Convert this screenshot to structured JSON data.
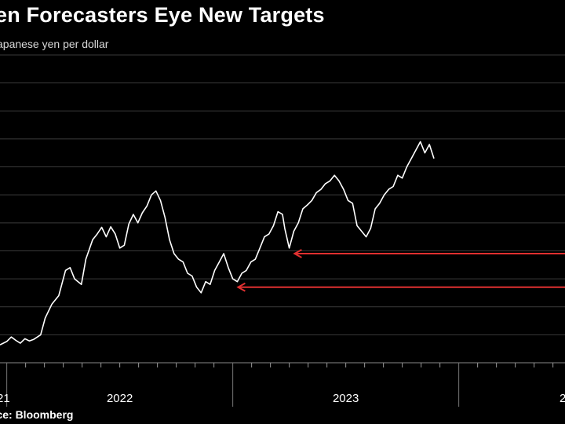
{
  "header": {
    "title": "en Forecasters Eye New Targets",
    "subtitle": "apanese yen per dollar"
  },
  "footer": {
    "source": "rce: Bloomberg"
  },
  "colors": {
    "background": "#000000",
    "line": "#ffffff",
    "grid": "#3a3a3a",
    "arrow": "#e03030"
  },
  "chart_data": {
    "type": "line",
    "title": "en Forecasters Eye New Targets",
    "subtitle": "apanese yen per dollar",
    "xlabel": "",
    "ylabel": "",
    "grid": true,
    "xlim": [
      2021.97,
      2024.47
    ],
    "ylim": [
      100,
      155
    ],
    "x_tick_labels": [
      "21",
      "2022",
      "2023",
      "2"
    ],
    "series": [
      {
        "values": [
          [
            2021.97,
            103.2
          ],
          [
            2022.0,
            103.8
          ],
          [
            2022.02,
            104.6
          ],
          [
            2022.04,
            104.0
          ],
          [
            2022.06,
            103.5
          ],
          [
            2022.08,
            104.3
          ],
          [
            2022.1,
            103.9
          ],
          [
            2022.12,
            104.2
          ],
          [
            2022.15,
            105.0
          ],
          [
            2022.17,
            108.0
          ],
          [
            2022.2,
            110.5
          ],
          [
            2022.23,
            112.0
          ],
          [
            2022.26,
            116.5
          ],
          [
            2022.28,
            117.0
          ],
          [
            2022.3,
            115.0
          ],
          [
            2022.33,
            114.0
          ],
          [
            2022.35,
            118.5
          ],
          [
            2022.38,
            122.0
          ],
          [
            2022.4,
            123.0
          ],
          [
            2022.42,
            124.2
          ],
          [
            2022.44,
            122.5
          ],
          [
            2022.46,
            124.3
          ],
          [
            2022.48,
            123.0
          ],
          [
            2022.5,
            120.5
          ],
          [
            2022.52,
            121.0
          ],
          [
            2022.54,
            124.8
          ],
          [
            2022.56,
            126.5
          ],
          [
            2022.58,
            125.0
          ],
          [
            2022.6,
            126.8
          ],
          [
            2022.62,
            128.0
          ],
          [
            2022.64,
            130.0
          ],
          [
            2022.66,
            130.7
          ],
          [
            2022.68,
            129.0
          ],
          [
            2022.7,
            126.0
          ],
          [
            2022.72,
            122.0
          ],
          [
            2022.74,
            119.5
          ],
          [
            2022.76,
            118.5
          ],
          [
            2022.78,
            118.0
          ],
          [
            2022.8,
            116.0
          ],
          [
            2022.82,
            115.5
          ],
          [
            2022.84,
            113.5
          ],
          [
            2022.86,
            112.5
          ],
          [
            2022.88,
            114.5
          ],
          [
            2022.9,
            114.0
          ],
          [
            2022.92,
            116.5
          ],
          [
            2022.94,
            118.0
          ],
          [
            2022.96,
            119.5
          ],
          [
            2022.98,
            117.0
          ],
          [
            2023.0,
            115.0
          ],
          [
            2023.02,
            114.5
          ],
          [
            2023.04,
            116.0
          ],
          [
            2023.06,
            116.5
          ],
          [
            2023.08,
            118.0
          ],
          [
            2023.1,
            118.5
          ],
          [
            2023.12,
            120.5
          ],
          [
            2023.14,
            122.5
          ],
          [
            2023.16,
            123.0
          ],
          [
            2023.18,
            124.5
          ],
          [
            2023.2,
            127.0
          ],
          [
            2023.22,
            126.5
          ],
          [
            2023.23,
            124.0
          ],
          [
            2023.25,
            120.5
          ],
          [
            2023.27,
            123.5
          ],
          [
            2023.29,
            125.0
          ],
          [
            2023.31,
            127.5
          ],
          [
            2023.33,
            128.2
          ],
          [
            2023.35,
            129.0
          ],
          [
            2023.37,
            130.4
          ],
          [
            2023.39,
            131.0
          ],
          [
            2023.41,
            132.0
          ],
          [
            2023.43,
            132.5
          ],
          [
            2023.45,
            133.5
          ],
          [
            2023.47,
            132.5
          ],
          [
            2023.49,
            131.0
          ],
          [
            2023.51,
            129.0
          ],
          [
            2023.53,
            128.5
          ],
          [
            2023.55,
            124.5
          ],
          [
            2023.57,
            123.5
          ],
          [
            2023.59,
            122.5
          ],
          [
            2023.61,
            124.0
          ],
          [
            2023.63,
            127.5
          ],
          [
            2023.65,
            128.5
          ],
          [
            2023.67,
            130.0
          ],
          [
            2023.69,
            131.0
          ],
          [
            2023.71,
            131.5
          ],
          [
            2023.73,
            133.5
          ],
          [
            2023.75,
            133.0
          ],
          [
            2023.77,
            135.0
          ],
          [
            2023.79,
            136.5
          ],
          [
            2023.81,
            138.0
          ],
          [
            2023.83,
            139.5
          ],
          [
            2023.85,
            137.5
          ],
          [
            2023.87,
            139.0
          ],
          [
            2023.89,
            136.5
          ]
        ]
      }
    ],
    "annotations": [
      {
        "type": "arrow",
        "y": 119.5,
        "x_start": 2023.27,
        "direction": "left"
      },
      {
        "type": "arrow",
        "y": 113.5,
        "x_start": 2023.02,
        "direction": "left"
      }
    ]
  }
}
